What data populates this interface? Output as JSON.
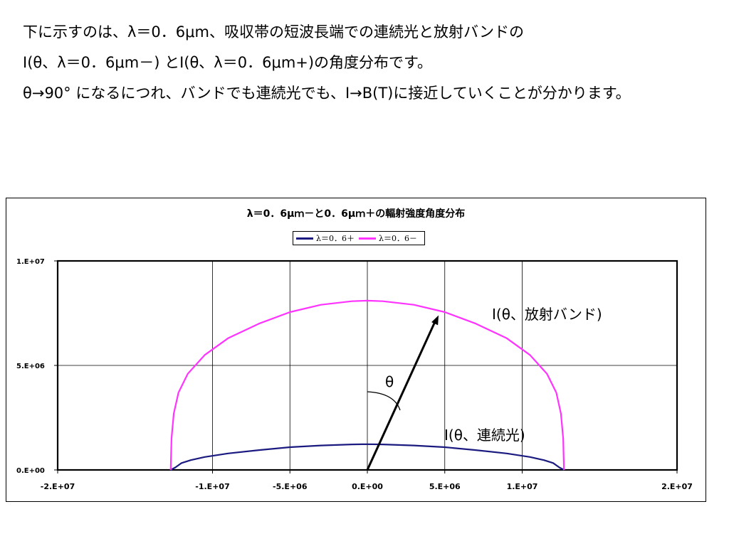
{
  "intro": {
    "line1": "下に示すのは、λ＝0．6μm、吸収帯の短波長端での連続光と放射バンドの",
    "line2": "I(θ、λ＝0．6μm－) とI(θ、λ＝0．6μm+)の角度分布です。",
    "line3": "θ→90° になるにつれ、バンドでも連続光でも、I→B(T)に接近していくことが分かります。"
  },
  "colors": {
    "plus_series": "#1a1a80",
    "minus_series": "#ff33ff",
    "arrow": "#000000"
  },
  "chart_data": {
    "type": "line",
    "title": "λ＝0．6μｍ－と0．6μｍ＋の輻射強度角度分布",
    "xlim": [
      -20000000,
      20000000
    ],
    "ylim": [
      0,
      10000000
    ],
    "x_ticks": [
      -20000000,
      -10000000,
      -5000000,
      0,
      5000000,
      10000000,
      20000000
    ],
    "x_tick_labels": [
      "-2.E+07",
      "-1.E+07",
      "-5.E+06",
      "0.E+00",
      "5.E+06",
      "1.E+07",
      "2.E+07"
    ],
    "y_ticks": [
      0,
      5000000,
      10000000
    ],
    "y_tick_labels": [
      "0.E+00",
      "5.E+06",
      "1.E+07"
    ],
    "grid": true,
    "legend_position": "top-center",
    "series": [
      {
        "name": "λ＝0．6＋",
        "x": [
          -12700000,
          -12400000,
          -12000000,
          -11400000,
          -10500000,
          -9000000,
          -7000000,
          -5000000,
          -3000000,
          -1000000,
          0,
          1000000,
          3000000,
          5000000,
          7000000,
          9000000,
          10500000,
          11400000,
          12000000,
          12400000,
          12700000
        ],
        "y": [
          0,
          120000,
          330000,
          470000,
          620000,
          790000,
          950000,
          1090000,
          1170000,
          1220000,
          1230000,
          1220000,
          1170000,
          1090000,
          950000,
          790000,
          620000,
          470000,
          330000,
          120000,
          0
        ]
      },
      {
        "name": "λ＝0．6－",
        "x": [
          -12700000,
          -12650000,
          -12500000,
          -12200000,
          -11600000,
          -10500000,
          -9000000,
          -7000000,
          -5000000,
          -3000000,
          -1000000,
          0,
          1000000,
          3000000,
          5000000,
          7000000,
          9000000,
          10500000,
          11600000,
          12200000,
          12500000,
          12650000,
          12700000
        ],
        "y": [
          0,
          1500000,
          2700000,
          3700000,
          4600000,
          5500000,
          6300000,
          7000000,
          7550000,
          7900000,
          8070000,
          8100000,
          8070000,
          7900000,
          7550000,
          7000000,
          6300000,
          5500000,
          4600000,
          3700000,
          2700000,
          1500000,
          0
        ]
      }
    ],
    "annotations": {
      "band_label": "I(θ、放射バンド)",
      "continuum_label": "I(θ、連続光)",
      "theta_label": "θ"
    }
  }
}
